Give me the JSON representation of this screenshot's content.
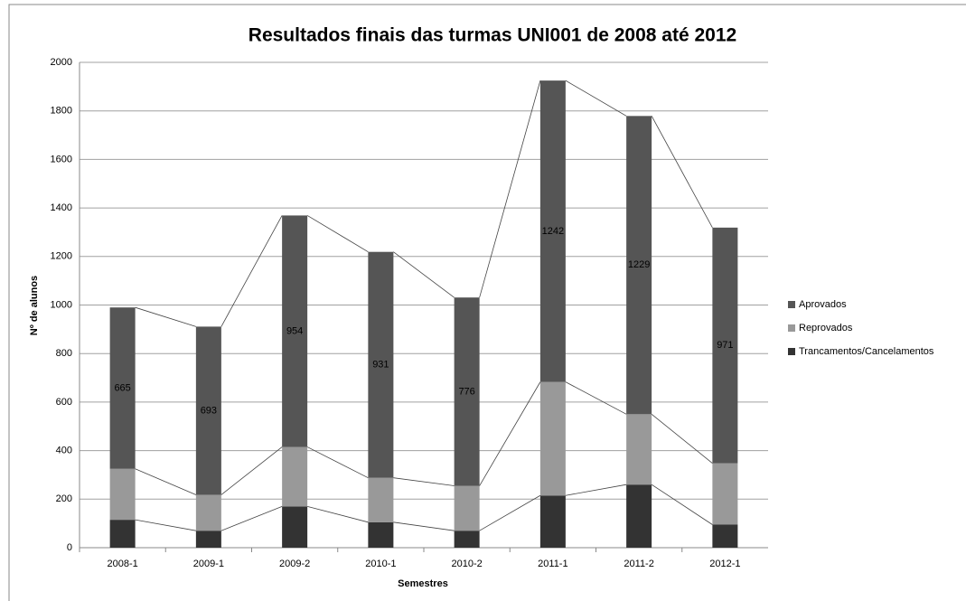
{
  "chart_data": {
    "type": "stacked_bar",
    "title": "Resultados finais das turmas UNI001 de 2008 até 2012",
    "x_label": "Semestres",
    "y_label": "Nº de alunos",
    "categories": [
      "2008-1",
      "2009-1",
      "2009-2",
      "2010-1",
      "2010-2",
      "2011-1",
      "2011-2",
      "2012-1"
    ],
    "series": [
      {
        "name": "Trancamentos/Cancelamentos",
        "color": "#333333",
        "values": [
          115,
          70,
          170,
          105,
          70,
          215,
          260,
          95
        ]
      },
      {
        "name": "Reprovados",
        "color": "#999999",
        "values": [
          210,
          148,
          245,
          183,
          185,
          468,
          290,
          253
        ]
      },
      {
        "name": "Aprovados",
        "color": "#555555",
        "values": [
          665,
          693,
          954,
          931,
          776,
          1242,
          1229,
          971
        ]
      }
    ],
    "labeled_series": 2,
    "ylim": [
      0,
      2000
    ],
    "yticks": [
      0,
      200,
      400,
      600,
      800,
      1000,
      1200,
      1400,
      1600,
      1800,
      2000
    ],
    "grid": true,
    "legend": "right"
  }
}
